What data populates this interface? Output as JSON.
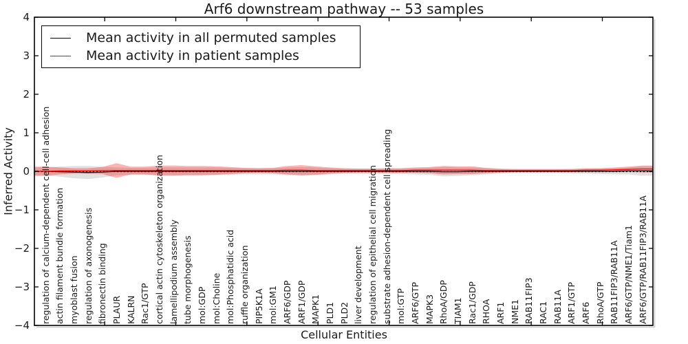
{
  "chart_data": {
    "type": "line",
    "title": "Arf6 downstream pathway -- 53 samples",
    "xlabel": "Cellular Entities",
    "ylabel": "Inferred Activity",
    "ylim": [
      -4,
      4
    ],
    "grid": false,
    "legend_position": "upper left",
    "baseline": {
      "value": 0,
      "style": "dotted",
      "color": "#000000"
    },
    "yticks": [
      {
        "label": "4",
        "value": 4
      },
      {
        "label": "3",
        "value": 3
      },
      {
        "label": "2",
        "value": 2
      },
      {
        "label": "1",
        "value": 1
      },
      {
        "label": "0",
        "value": 0
      },
      {
        "label": "−1",
        "value": -1
      },
      {
        "label": "−2",
        "value": -2
      },
      {
        "label": "−3",
        "value": -3
      },
      {
        "label": "−4",
        "value": -4
      }
    ],
    "categories": [
      "regulation of calcium-dependent cell-cell adhesion",
      "actin filament bundle formation",
      "myoblast fusion",
      "regulation of axonogenesis",
      "fibronectin binding",
      "PLAUR",
      "KALRN",
      "Rac1/GTP",
      "cortical actin cytoskeleton organization",
      "lamellipodium assembly",
      "tube morphogenesis",
      "mol:GDP",
      "mol:Choline",
      "mol:Phosphatidic acid",
      "ruffle organization",
      "PIP5K1A",
      "mol:GM1",
      "ARF6/GDP",
      "ARF1/GDP",
      "MAPK1",
      "PLD1",
      "PLD2",
      "liver development",
      "regulation of epithelial cell migration",
      "substrate adhesion-dependent cell spreading",
      "mol:GTP",
      "ARF6/GTP",
      "MAPK3",
      "RhoA/GDP",
      "TIAM1",
      "Rac1/GDP",
      "RHOA",
      "ARF1",
      "NME1",
      "RAB11FIP3",
      "RAC1",
      "RAB11A",
      "ARF1/GTP",
      "ARF6",
      "RhoA/GTP",
      "RAB11FIP3/RAB11A",
      "ARF6/GTP/NME1/Tiam1",
      "ARF6/GTP/RAB11FIP3/RAB11A"
    ],
    "series": [
      {
        "name": "Mean activity in all permuted samples",
        "color": "#000000",
        "band_color": "#888888",
        "band_alpha": 0.25,
        "values": [
          0.0,
          -0.01,
          -0.02,
          -0.03,
          -0.02,
          0.0,
          0.0,
          0.0,
          0.0,
          0.0,
          0.0,
          0.0,
          0.0,
          0.0,
          0.0,
          0.0,
          0.0,
          0.0,
          0.0,
          0.0,
          0.0,
          0.0,
          0.0,
          0.0,
          0.0,
          0.0,
          0.0,
          0.0,
          -0.01,
          -0.01,
          0.0,
          0.0,
          0.0,
          0.0,
          0.0,
          0.0,
          0.0,
          0.0,
          0.0,
          0.0,
          0.0,
          0.01,
          0.01
        ],
        "std": [
          0.1,
          0.13,
          0.16,
          0.17,
          0.14,
          0.1,
          0.09,
          0.09,
          0.1,
          0.1,
          0.1,
          0.1,
          0.1,
          0.09,
          0.08,
          0.08,
          0.08,
          0.1,
          0.11,
          0.1,
          0.08,
          0.07,
          0.07,
          0.07,
          0.07,
          0.07,
          0.08,
          0.09,
          0.12,
          0.11,
          0.1,
          0.08,
          0.06,
          0.05,
          0.05,
          0.05,
          0.05,
          0.06,
          0.06,
          0.07,
          0.08,
          0.09,
          0.12
        ]
      },
      {
        "name": "Mean activity in patient samples",
        "color": "#ff0000",
        "band_color": "#ff0000",
        "band_alpha": 0.3,
        "values": [
          0.0,
          0.01,
          0.01,
          0.01,
          0.02,
          0.02,
          0.02,
          0.02,
          0.02,
          0.02,
          0.02,
          0.02,
          0.02,
          0.02,
          0.02,
          0.02,
          0.02,
          0.03,
          0.03,
          0.02,
          0.02,
          0.02,
          0.02,
          0.02,
          0.02,
          0.02,
          0.03,
          0.03,
          0.03,
          0.03,
          0.03,
          0.02,
          0.02,
          0.02,
          0.02,
          0.02,
          0.02,
          0.02,
          0.03,
          0.03,
          0.04,
          0.05,
          0.06
        ],
        "std": [
          0.12,
          0.09,
          0.07,
          0.07,
          0.09,
          0.19,
          0.1,
          0.1,
          0.13,
          0.13,
          0.12,
          0.12,
          0.11,
          0.09,
          0.07,
          0.06,
          0.07,
          0.11,
          0.13,
          0.11,
          0.08,
          0.06,
          0.05,
          0.05,
          0.06,
          0.06,
          0.07,
          0.08,
          0.11,
          0.1,
          0.1,
          0.07,
          0.05,
          0.04,
          0.04,
          0.04,
          0.04,
          0.04,
          0.05,
          0.05,
          0.06,
          0.07,
          0.09
        ]
      }
    ]
  }
}
